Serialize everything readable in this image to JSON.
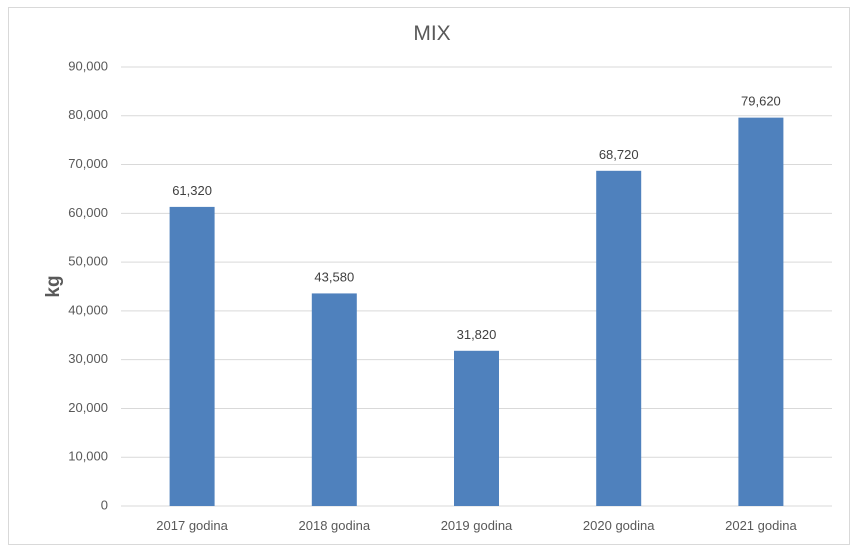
{
  "chart_data": {
    "type": "bar",
    "title": "MIX",
    "xlabel": "",
    "ylabel": "kg",
    "categories": [
      "2017 godina",
      "2018 godina",
      "2019 godina",
      "2020 godina",
      "2021 godina"
    ],
    "values": [
      61320,
      43580,
      31820,
      68720,
      79620
    ],
    "data_labels": [
      "61,320",
      "43,580",
      "31,820",
      "68,720",
      "79,620"
    ],
    "ylim": [
      0,
      90000
    ],
    "yticks": [
      0,
      10000,
      20000,
      30000,
      40000,
      50000,
      60000,
      70000,
      80000,
      90000
    ],
    "ytick_labels": [
      "0",
      "10,000",
      "20,000",
      "30,000",
      "40,000",
      "50,000",
      "60,000",
      "70,000",
      "80,000",
      "90,000"
    ],
    "grid": true,
    "legend": "none",
    "bar_color": "#4f81bd",
    "grid_color": "#d9d9d9"
  }
}
